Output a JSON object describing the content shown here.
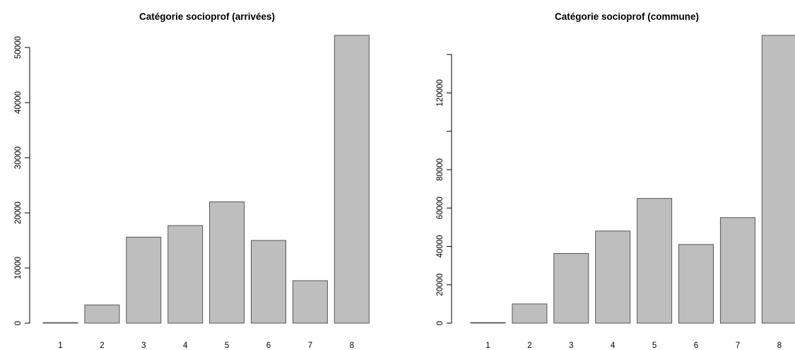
{
  "chart_data": [
    {
      "type": "bar",
      "title": "Catégorie socioprof (arrivées)",
      "xlabel": "",
      "ylabel": "",
      "categories": [
        "1",
        "2",
        "3",
        "4",
        "5",
        "6",
        "7",
        "8"
      ],
      "values": [
        100,
        3300,
        15600,
        17700,
        22000,
        15000,
        7700,
        52200
      ],
      "ylim": [
        0,
        52200
      ],
      "yticks": [
        0,
        10000,
        20000,
        30000,
        40000,
        50000
      ],
      "ytick_labels": [
        "0",
        "10000",
        "20000",
        "30000",
        "40000",
        "50000"
      ],
      "bar_color": "#bebebe",
      "grid": false
    },
    {
      "type": "bar",
      "title": "Catégorie socioprof (commune)",
      "xlabel": "",
      "ylabel": "",
      "categories": [
        "1",
        "2",
        "3",
        "4",
        "5",
        "6",
        "7",
        "8"
      ],
      "values": [
        300,
        10000,
        36300,
        48000,
        65000,
        41000,
        55000,
        150000
      ],
      "ylim": [
        0,
        150000
      ],
      "yticks": [
        0,
        20000,
        40000,
        60000,
        80000,
        100000,
        120000,
        140000
      ],
      "ytick_labels": [
        "0",
        "20000",
        "40000",
        "60000",
        "80000",
        "",
        "120000",
        ""
      ],
      "bar_color": "#bebebe",
      "grid": false
    }
  ]
}
